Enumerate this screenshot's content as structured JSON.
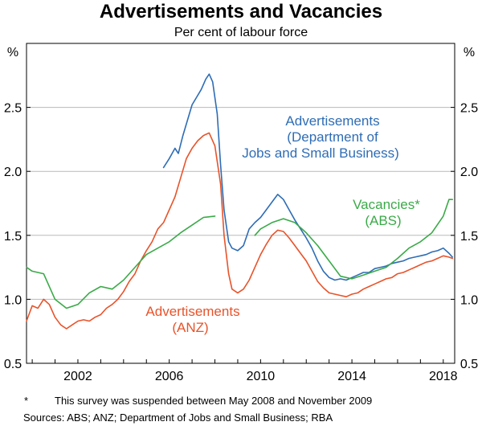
{
  "chart_data": {
    "type": "line",
    "title": "Advertisements and Vacancies",
    "subtitle": "Per cent of labour force",
    "ylabel_left": "%",
    "ylabel_right": "%",
    "xlim": [
      1999.75,
      2018.5
    ],
    "ylim": [
      0.5,
      3.0
    ],
    "yticks": [
      0.5,
      1.0,
      1.5,
      2.0,
      2.5
    ],
    "ytick_labels": [
      "0.5",
      "1.0",
      "1.5",
      "2.0",
      "2.5"
    ],
    "xticks": [
      2002,
      2006,
      2010,
      2014,
      2018
    ],
    "xtick_labels": [
      "2002",
      "2006",
      "2010",
      "2014",
      "2018"
    ],
    "grid": true,
    "series": [
      {
        "name": "Advertisements (Department of Jobs and Small Business)",
        "label_lines": [
          "Advertisements",
          "(Department of",
          "Jobs and Small Business)"
        ],
        "color": "#2e6db5",
        "points": [
          [
            2005.75,
            2.03
          ],
          [
            2006.0,
            2.1
          ],
          [
            2006.25,
            2.18
          ],
          [
            2006.4,
            2.14
          ],
          [
            2006.6,
            2.28
          ],
          [
            2006.8,
            2.4
          ],
          [
            2007.0,
            2.52
          ],
          [
            2007.2,
            2.58
          ],
          [
            2007.4,
            2.64
          ],
          [
            2007.6,
            2.72
          ],
          [
            2007.75,
            2.76
          ],
          [
            2007.9,
            2.7
          ],
          [
            2008.1,
            2.45
          ],
          [
            2008.25,
            2.05
          ],
          [
            2008.4,
            1.7
          ],
          [
            2008.6,
            1.45
          ],
          [
            2008.75,
            1.4
          ],
          [
            2009.0,
            1.38
          ],
          [
            2009.25,
            1.42
          ],
          [
            2009.5,
            1.55
          ],
          [
            2009.75,
            1.6
          ],
          [
            2010.0,
            1.64
          ],
          [
            2010.25,
            1.7
          ],
          [
            2010.5,
            1.76
          ],
          [
            2010.75,
            1.82
          ],
          [
            2011.0,
            1.78
          ],
          [
            2011.25,
            1.7
          ],
          [
            2011.5,
            1.62
          ],
          [
            2011.75,
            1.55
          ],
          [
            2012.0,
            1.48
          ],
          [
            2012.25,
            1.4
          ],
          [
            2012.5,
            1.3
          ],
          [
            2012.75,
            1.22
          ],
          [
            2013.0,
            1.17
          ],
          [
            2013.25,
            1.15
          ],
          [
            2013.5,
            1.16
          ],
          [
            2013.75,
            1.15
          ],
          [
            2014.0,
            1.17
          ],
          [
            2014.25,
            1.19
          ],
          [
            2014.5,
            1.21
          ],
          [
            2014.75,
            1.21
          ],
          [
            2015.0,
            1.24
          ],
          [
            2015.25,
            1.25
          ],
          [
            2015.5,
            1.26
          ],
          [
            2015.75,
            1.28
          ],
          [
            2016.0,
            1.29
          ],
          [
            2016.25,
            1.3
          ],
          [
            2016.5,
            1.32
          ],
          [
            2016.75,
            1.33
          ],
          [
            2017.0,
            1.34
          ],
          [
            2017.25,
            1.35
          ],
          [
            2017.5,
            1.37
          ],
          [
            2017.75,
            1.38
          ],
          [
            2018.0,
            1.4
          ],
          [
            2018.25,
            1.36
          ],
          [
            2018.4,
            1.33
          ]
        ]
      },
      {
        "name": "Advertisements (ANZ)",
        "label_lines": [
          "Advertisements",
          "(ANZ)"
        ],
        "color": "#e8532a",
        "points": [
          [
            1999.75,
            0.83
          ],
          [
            2000.0,
            0.95
          ],
          [
            2000.25,
            0.93
          ],
          [
            2000.5,
            1.0
          ],
          [
            2000.75,
            0.96
          ],
          [
            2001.0,
            0.86
          ],
          [
            2001.25,
            0.8
          ],
          [
            2001.5,
            0.77
          ],
          [
            2001.75,
            0.8
          ],
          [
            2002.0,
            0.83
          ],
          [
            2002.25,
            0.84
          ],
          [
            2002.5,
            0.83
          ],
          [
            2002.75,
            0.86
          ],
          [
            2003.0,
            0.88
          ],
          [
            2003.25,
            0.93
          ],
          [
            2003.5,
            0.96
          ],
          [
            2003.75,
            1.0
          ],
          [
            2004.0,
            1.06
          ],
          [
            2004.25,
            1.14
          ],
          [
            2004.5,
            1.2
          ],
          [
            2004.75,
            1.3
          ],
          [
            2005.0,
            1.38
          ],
          [
            2005.25,
            1.45
          ],
          [
            2005.5,
            1.55
          ],
          [
            2005.75,
            1.6
          ],
          [
            2006.0,
            1.7
          ],
          [
            2006.25,
            1.8
          ],
          [
            2006.5,
            1.95
          ],
          [
            2006.75,
            2.1
          ],
          [
            2007.0,
            2.18
          ],
          [
            2007.25,
            2.24
          ],
          [
            2007.5,
            2.28
          ],
          [
            2007.75,
            2.3
          ],
          [
            2008.0,
            2.2
          ],
          [
            2008.25,
            1.9
          ],
          [
            2008.4,
            1.5
          ],
          [
            2008.6,
            1.2
          ],
          [
            2008.75,
            1.08
          ],
          [
            2009.0,
            1.05
          ],
          [
            2009.25,
            1.08
          ],
          [
            2009.5,
            1.15
          ],
          [
            2009.75,
            1.25
          ],
          [
            2010.0,
            1.35
          ],
          [
            2010.25,
            1.43
          ],
          [
            2010.5,
            1.5
          ],
          [
            2010.75,
            1.54
          ],
          [
            2011.0,
            1.53
          ],
          [
            2011.25,
            1.48
          ],
          [
            2011.5,
            1.42
          ],
          [
            2011.75,
            1.36
          ],
          [
            2012.0,
            1.3
          ],
          [
            2012.25,
            1.22
          ],
          [
            2012.5,
            1.14
          ],
          [
            2012.75,
            1.09
          ],
          [
            2013.0,
            1.05
          ],
          [
            2013.25,
            1.04
          ],
          [
            2013.5,
            1.03
          ],
          [
            2013.75,
            1.02
          ],
          [
            2014.0,
            1.04
          ],
          [
            2014.25,
            1.05
          ],
          [
            2014.5,
            1.08
          ],
          [
            2014.75,
            1.1
          ],
          [
            2015.0,
            1.12
          ],
          [
            2015.25,
            1.14
          ],
          [
            2015.5,
            1.16
          ],
          [
            2015.75,
            1.17
          ],
          [
            2016.0,
            1.2
          ],
          [
            2016.25,
            1.21
          ],
          [
            2016.5,
            1.23
          ],
          [
            2016.75,
            1.25
          ],
          [
            2017.0,
            1.27
          ],
          [
            2017.25,
            1.29
          ],
          [
            2017.5,
            1.3
          ],
          [
            2017.75,
            1.32
          ],
          [
            2018.0,
            1.34
          ],
          [
            2018.25,
            1.33
          ],
          [
            2018.4,
            1.32
          ]
        ]
      },
      {
        "name": "Vacancies* (ABS)",
        "label_lines": [
          "Vacancies*",
          "(ABS)"
        ],
        "color": "#3aaa48",
        "points": [
          [
            1999.75,
            1.25
          ],
          [
            2000.0,
            1.22
          ],
          [
            2000.5,
            1.2
          ],
          [
            2001.0,
            1.0
          ],
          [
            2001.5,
            0.93
          ],
          [
            2002.0,
            0.96
          ],
          [
            2002.5,
            1.05
          ],
          [
            2003.0,
            1.1
          ],
          [
            2003.5,
            1.08
          ],
          [
            2004.0,
            1.15
          ],
          [
            2004.5,
            1.25
          ],
          [
            2005.0,
            1.35
          ],
          [
            2005.5,
            1.4
          ],
          [
            2006.0,
            1.45
          ],
          [
            2006.5,
            1.52
          ],
          [
            2007.0,
            1.58
          ],
          [
            2007.5,
            1.64
          ],
          [
            2008.0,
            1.65
          ],
          null,
          [
            2009.75,
            1.5
          ],
          [
            2010.0,
            1.55
          ],
          [
            2010.5,
            1.6
          ],
          [
            2011.0,
            1.63
          ],
          [
            2011.5,
            1.6
          ],
          [
            2012.0,
            1.52
          ],
          [
            2012.5,
            1.42
          ],
          [
            2013.0,
            1.3
          ],
          [
            2013.5,
            1.18
          ],
          [
            2014.0,
            1.16
          ],
          [
            2014.5,
            1.19
          ],
          [
            2015.0,
            1.22
          ],
          [
            2015.5,
            1.25
          ],
          [
            2016.0,
            1.32
          ],
          [
            2016.5,
            1.4
          ],
          [
            2017.0,
            1.45
          ],
          [
            2017.5,
            1.52
          ],
          [
            2018.0,
            1.65
          ],
          [
            2018.25,
            1.78
          ],
          [
            2018.4,
            1.78
          ]
        ]
      }
    ],
    "footnote_marker": "*",
    "footnote_text": "This survey was suspended between May 2008 and November 2009",
    "sources": "Sources: ABS; ANZ; Department of Jobs and Small Business; RBA"
  }
}
